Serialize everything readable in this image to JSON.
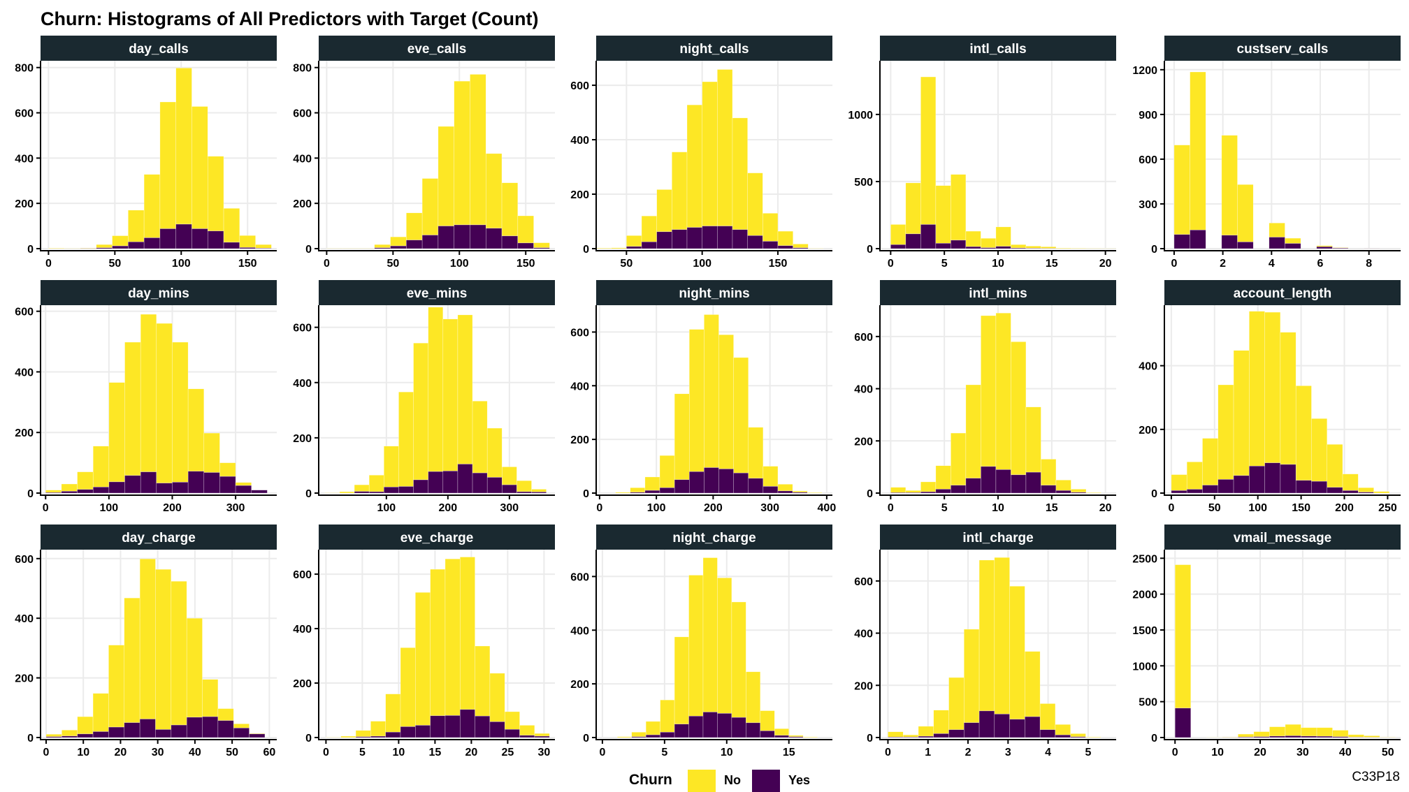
{
  "chart_data": {
    "type": "histogram-facets",
    "title": "Churn: Histograms of All Predictors with Target (Count)",
    "caption": "C33P18",
    "legend": {
      "title": "Churn",
      "placement": "bottom",
      "entries": [
        {
          "label": "No",
          "color": "#fde725"
        },
        {
          "label": "Yes",
          "color": "#440154"
        }
      ]
    },
    "colors": {
      "strip_bg": "#1a2930",
      "grid": "#ebebeb",
      "no": "#fde725",
      "yes": "#440154",
      "bar_outline": "#ffffff"
    },
    "grid": true,
    "panels": [
      {
        "name": "day_calls",
        "xlim": [
          -6,
          172
        ],
        "ylim": [
          0,
          830
        ],
        "xticks": [
          0,
          50,
          100,
          150
        ],
        "yticks": [
          0,
          200,
          400,
          600,
          800
        ],
        "bin_width": 12,
        "bins": [
          0,
          12,
          24,
          36,
          48,
          60,
          72,
          84,
          96,
          108,
          120,
          132,
          144,
          156
        ],
        "no": [
          2,
          1,
          2,
          14,
          45,
          140,
          280,
          560,
          690,
          540,
          330,
          150,
          53,
          16
        ],
        "yes": [
          0,
          0,
          1,
          4,
          12,
          30,
          48,
          88,
          108,
          88,
          78,
          28,
          5,
          2
        ]
      },
      {
        "name": "eve_calls",
        "xlim": [
          -6,
          172
        ],
        "ylim": [
          0,
          830
        ],
        "xticks": [
          0,
          50,
          100,
          150
        ],
        "yticks": [
          0,
          200,
          400,
          600,
          800
        ],
        "bin_width": 12,
        "bins": [
          0,
          12,
          24,
          36,
          48,
          60,
          72,
          84,
          96,
          108,
          120,
          132,
          144,
          156
        ],
        "no": [
          1,
          1,
          1,
          14,
          40,
          120,
          250,
          440,
          635,
          665,
          330,
          235,
          120,
          22
        ],
        "yes": [
          0,
          0,
          0,
          4,
          12,
          38,
          60,
          100,
          105,
          105,
          90,
          56,
          25,
          4
        ]
      },
      {
        "name": "night_calls",
        "xlim": [
          30,
          186
        ],
        "ylim": [
          0,
          690
        ],
        "xticks": [
          50,
          100,
          150
        ],
        "yticks": [
          0,
          200,
          400,
          600
        ],
        "bin_width": 10,
        "bins": [
          30,
          40,
          50,
          60,
          70,
          80,
          90,
          100,
          110,
          120,
          130,
          140,
          150,
          160,
          170
        ],
        "no": [
          2,
          3,
          40,
          95,
          155,
          285,
          450,
          530,
          575,
          410,
          230,
          103,
          53,
          14,
          1
        ],
        "yes": [
          0,
          0,
          8,
          25,
          62,
          70,
          78,
          83,
          83,
          70,
          48,
          27,
          11,
          3,
          0
        ]
      },
      {
        "name": "intl_calls",
        "xlim": [
          -1,
          21
        ],
        "ylim": [
          0,
          1400
        ],
        "xticks": [
          0,
          5,
          10,
          15,
          20
        ],
        "yticks": [
          0,
          500,
          1000
        ],
        "bin_width": 1.4,
        "bins": [
          0,
          1.4,
          2.8,
          4.2,
          5.6,
          7,
          8.4,
          9.8,
          11.2,
          12.6,
          14,
          15.4,
          16.8,
          18.2,
          19.6
        ],
        "no": [
          150,
          380,
          1100,
          430,
          490,
          115,
          70,
          145,
          25,
          16,
          12,
          4,
          3,
          2,
          1
        ],
        "yes": [
          30,
          110,
          180,
          40,
          63,
          15,
          7,
          17,
          5,
          3,
          2,
          0,
          0,
          0,
          0
        ]
      },
      {
        "name": "custserv_calls",
        "xlim": [
          -0.4,
          9.3
        ],
        "ylim": [
          0,
          1260
        ],
        "xticks": [
          0,
          2,
          4,
          6,
          8
        ],
        "yticks": [
          0,
          300,
          600,
          900,
          1200
        ],
        "bin_width": 0.65,
        "bins": [
          0,
          0.65,
          1.3,
          1.95,
          2.6,
          3.25,
          3.9,
          4.55,
          5.2,
          5.85,
          6.5,
          7.15,
          7.8,
          8.45
        ],
        "no": [
          600,
          1060,
          0,
          670,
          385,
          0,
          95,
          35,
          0,
          7,
          3,
          0,
          1,
          0
        ],
        "yes": [
          95,
          125,
          0,
          90,
          45,
          0,
          77,
          35,
          0,
          13,
          4,
          0,
          1,
          0
        ]
      },
      {
        "name": "day_mins",
        "xlim": [
          -8,
          365
        ],
        "ylim": [
          0,
          620
        ],
        "xticks": [
          0,
          100,
          200,
          300
        ],
        "yticks": [
          0,
          200,
          400,
          600
        ],
        "bin_width": 25,
        "bins": [
          0,
          25,
          50,
          75,
          100,
          125,
          150,
          175,
          200,
          225,
          250,
          275,
          300,
          325
        ],
        "no": [
          8,
          24,
          58,
          135,
          328,
          440,
          520,
          527,
          462,
          272,
          130,
          45,
          10,
          0
        ],
        "yes": [
          2,
          6,
          12,
          20,
          37,
          58,
          70,
          33,
          36,
          72,
          68,
          55,
          25,
          10
        ]
      },
      {
        "name": "eve_mins",
        "xlim": [
          -10,
          374
        ],
        "ylim": [
          0,
          680
        ],
        "xticks": [
          100,
          200,
          300
        ],
        "yticks": [
          0,
          200,
          400,
          600
        ],
        "bin_width": 24,
        "bins": [
          0,
          24,
          48,
          72,
          96,
          120,
          144,
          168,
          192,
          216,
          240,
          264,
          288,
          312,
          336
        ],
        "no": [
          1,
          5,
          24,
          60,
          148,
          342,
          495,
          595,
          550,
          540,
          260,
          178,
          65,
          40,
          10
        ],
        "yes": [
          0,
          0,
          6,
          5,
          22,
          24,
          48,
          78,
          80,
          105,
          73,
          57,
          30,
          5,
          4
        ]
      },
      {
        "name": "night_mins",
        "xlim": [
          -6,
          410
        ],
        "ylim": [
          0,
          700
        ],
        "xticks": [
          0,
          100,
          200,
          300,
          400
        ],
        "yticks": [
          0,
          200,
          400,
          600
        ],
        "bin_width": 26,
        "bins": [
          28,
          54,
          80,
          106,
          132,
          158,
          184,
          210,
          236,
          262,
          288,
          314,
          340,
          366
        ],
        "no": [
          3,
          17,
          50,
          120,
          320,
          530,
          570,
          500,
          430,
          190,
          75,
          25,
          5,
          2
        ],
        "yes": [
          0,
          3,
          10,
          20,
          50,
          80,
          95,
          90,
          75,
          55,
          25,
          8,
          3,
          0
        ]
      },
      {
        "name": "intl_mins",
        "xlim": [
          -1,
          21
        ],
        "ylim": [
          0,
          720
        ],
        "xticks": [
          0,
          5,
          10,
          15,
          20
        ],
        "yticks": [
          0,
          200,
          400,
          600
        ],
        "bin_width": 1.4,
        "bins": [
          0,
          1.4,
          2.8,
          4.2,
          5.6,
          7,
          8.4,
          9.8,
          11.2,
          12.6,
          14,
          15.4,
          16.8,
          18.2
        ],
        "no": [
          20,
          8,
          38,
          90,
          200,
          358,
          578,
          600,
          510,
          250,
          100,
          40,
          12,
          2
        ],
        "yes": [
          2,
          2,
          5,
          15,
          30,
          57,
          102,
          90,
          70,
          80,
          30,
          10,
          3,
          0
        ]
      },
      {
        "name": "account_length",
        "xlim": [
          -8,
          265
        ],
        "ylim": [
          0,
          590
        ],
        "xticks": [
          0,
          50,
          100,
          150,
          200,
          250
        ],
        "yticks": [
          0,
          200,
          400
        ],
        "bin_width": 18,
        "bins": [
          0,
          18,
          36,
          54,
          72,
          90,
          108,
          126,
          144,
          162,
          180,
          198,
          216,
          234
        ],
        "no": [
          50,
          86,
          147,
          297,
          393,
          486,
          473,
          415,
          297,
          197,
          135,
          52,
          14,
          5
        ],
        "yes": [
          8,
          12,
          25,
          43,
          55,
          85,
          95,
          90,
          40,
          37,
          18,
          8,
          3,
          0
        ]
      },
      {
        "name": "day_charge",
        "xlim": [
          -1.5,
          62
        ],
        "ylim": [
          0,
          630
        ],
        "xticks": [
          0,
          10,
          20,
          30,
          40,
          50,
          60
        ],
        "yticks": [
          0,
          200,
          400,
          600
        ],
        "bin_width": 4.2,
        "bins": [
          0,
          4.2,
          8.4,
          12.6,
          16.8,
          21,
          25.2,
          29.4,
          33.6,
          37.8,
          42,
          46.2,
          50.4,
          54.6
        ],
        "no": [
          8,
          20,
          58,
          128,
          275,
          418,
          537,
          537,
          482,
          332,
          125,
          40,
          14,
          2
        ],
        "yes": [
          3,
          5,
          12,
          20,
          35,
          50,
          62,
          27,
          42,
          68,
          70,
          57,
          32,
          12
        ]
      },
      {
        "name": "eve_charge",
        "xlim": [
          -1,
          31.5
        ],
        "ylim": [
          0,
          690
        ],
        "xticks": [
          0,
          5,
          10,
          15,
          20,
          25,
          30
        ],
        "yticks": [
          0,
          200,
          400,
          600
        ],
        "bin_width": 2.05,
        "bins": [
          0,
          2.05,
          4.1,
          6.15,
          8.2,
          10.25,
          12.3,
          14.35,
          16.4,
          18.45,
          20.5,
          22.55,
          24.6,
          26.65,
          28.7
        ],
        "no": [
          1,
          5,
          23,
          55,
          140,
          290,
          488,
          538,
          575,
          560,
          257,
          178,
          65,
          37,
          10
        ],
        "yes": [
          0,
          0,
          3,
          5,
          20,
          40,
          45,
          80,
          81,
          103,
          79,
          58,
          30,
          8,
          5
        ]
      },
      {
        "name": "night_charge",
        "xlim": [
          -0.5,
          18.5
        ],
        "ylim": [
          0,
          700
        ],
        "xticks": [
          0,
          5,
          10,
          15
        ],
        "yticks": [
          0,
          200,
          400,
          600
        ],
        "bin_width": 1.15,
        "bins": [
          1.2,
          2.35,
          3.5,
          4.65,
          5.8,
          6.95,
          8.1,
          9.25,
          10.4,
          11.55,
          12.7,
          13.85,
          15,
          16.15
        ],
        "no": [
          3,
          17,
          50,
          120,
          325,
          525,
          575,
          505,
          430,
          190,
          75,
          25,
          5,
          2
        ],
        "yes": [
          0,
          3,
          10,
          20,
          50,
          80,
          95,
          90,
          75,
          55,
          25,
          8,
          3,
          0
        ]
      },
      {
        "name": "intl_charge",
        "xlim": [
          -0.2,
          5.7
        ],
        "ylim": [
          0,
          720
        ],
        "xticks": [
          0,
          1,
          2,
          3,
          4,
          5
        ],
        "yticks": [
          0,
          200,
          400,
          600
        ],
        "bin_width": 0.38,
        "bins": [
          0,
          0.38,
          0.76,
          1.14,
          1.52,
          1.9,
          2.28,
          2.66,
          3.04,
          3.42,
          3.8,
          4.18,
          4.56,
          4.94
        ],
        "no": [
          20,
          8,
          38,
          90,
          200,
          358,
          578,
          600,
          510,
          250,
          100,
          40,
          12,
          2
        ],
        "yes": [
          2,
          2,
          5,
          15,
          30,
          57,
          102,
          90,
          70,
          80,
          30,
          10,
          3,
          0
        ]
      },
      {
        "name": "vmail_message",
        "xlim": [
          -2.5,
          53
        ],
        "ylim": [
          0,
          2620
        ],
        "xticks": [
          0,
          10,
          20,
          30,
          40,
          50
        ],
        "yticks": [
          0,
          500,
          1000,
          1500,
          2000,
          2500
        ],
        "bin_width": 3.7,
        "bins": [
          0,
          3.7,
          7.4,
          11.1,
          14.8,
          18.5,
          22.2,
          25.9,
          29.6,
          33.3,
          37,
          40.7,
          44.4,
          48.1
        ],
        "no": [
          2000,
          0,
          2,
          6,
          40,
          70,
          130,
          158,
          118,
          120,
          90,
          35,
          22,
          6
        ],
        "yes": [
          410,
          0,
          0,
          2,
          8,
          12,
          20,
          25,
          20,
          18,
          12,
          5,
          3,
          1
        ]
      }
    ]
  }
}
